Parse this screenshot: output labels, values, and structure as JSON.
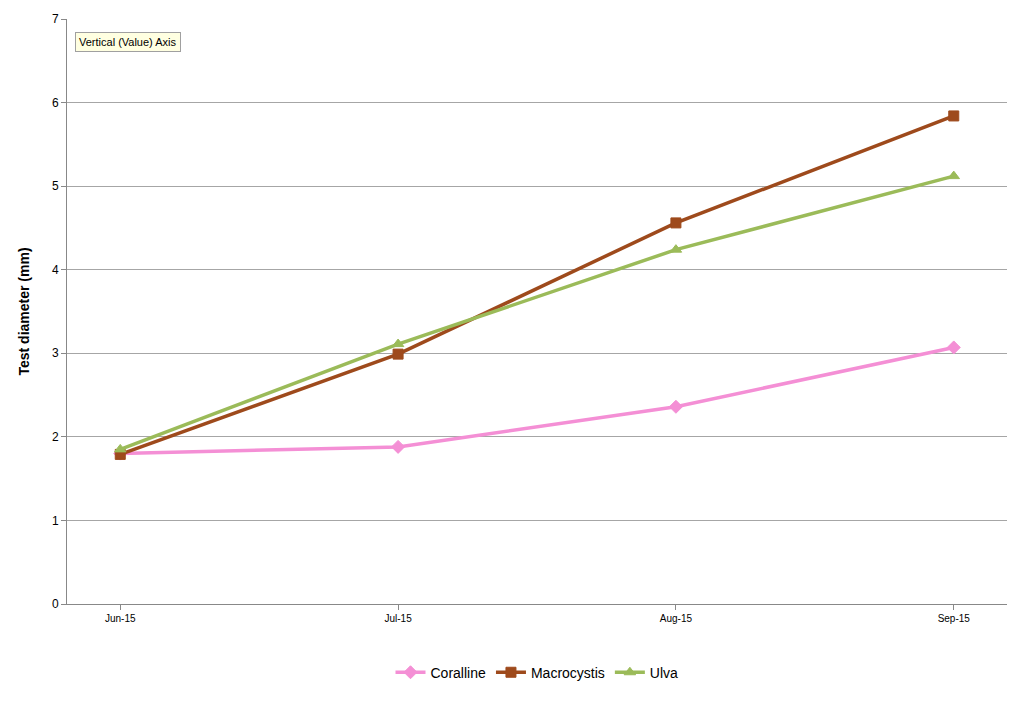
{
  "chart_data": {
    "type": "line",
    "y_label": "Test diameter (mm)",
    "annotations": [
      "Vertical (Value) Axis"
    ],
    "categories": [
      "Jun-15",
      "Jul-15",
      "Aug-15",
      "Sep-15"
    ],
    "series": [
      {
        "name": "Coralline",
        "color": "#f48fd5",
        "marker": "diamond",
        "line_style": "solid",
        "values": [
          1.8,
          1.88,
          2.36,
          3.07
        ]
      },
      {
        "name": "Macrocystis",
        "color": "#9e4a1c",
        "marker": "square",
        "line_style": "solid",
        "values": [
          1.79,
          2.99,
          4.56,
          5.84
        ]
      },
      {
        "name": "Ulva",
        "color": "#9bbb59",
        "marker": "triangle-up",
        "line_style": "solid",
        "values": [
          1.85,
          3.11,
          4.24,
          5.12
        ]
      }
    ],
    "ylim": [
      0,
      7
    ],
    "yticks": [
      0,
      1,
      2,
      3,
      4,
      5,
      6,
      7
    ],
    "grid": true,
    "legend": "bottom"
  }
}
